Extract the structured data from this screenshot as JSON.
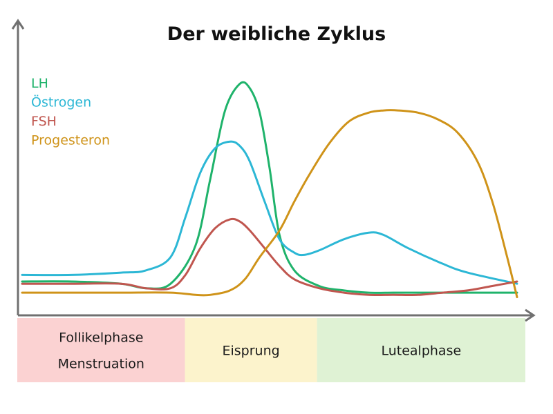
{
  "chart_data": {
    "type": "line",
    "title": "Der weibliche Zyklus",
    "xlabel": "",
    "ylabel": "",
    "xlim": [
      0,
      100
    ],
    "ylim": [
      0,
      100
    ],
    "grid": false,
    "legend_position": "top-left",
    "series": [
      {
        "name": "LH",
        "color": "#1fb36b",
        "x": [
          0,
          10,
          20,
          25,
          30,
          35,
          38,
          41,
          44,
          46,
          48,
          50,
          52,
          55,
          60,
          65,
          70,
          75,
          80,
          90,
          100
        ],
        "y": [
          9,
          9,
          8,
          6,
          8,
          25,
          55,
          86,
          98,
          96,
          85,
          60,
          30,
          14,
          7,
          5,
          4,
          4,
          4,
          4,
          4
        ]
      },
      {
        "name": "Östrogen",
        "color": "#2cb7d5",
        "x": [
          0,
          10,
          20,
          25,
          30,
          33,
          36,
          39,
          42,
          44,
          46,
          49,
          52,
          55,
          57,
          60,
          65,
          70,
          73,
          78,
          85,
          90,
          100
        ],
        "y": [
          12,
          12,
          13,
          14,
          20,
          38,
          58,
          69,
          72,
          70,
          63,
          45,
          28,
          22,
          21,
          23,
          28,
          31,
          30,
          24,
          17,
          13,
          8
        ]
      },
      {
        "name": "FSH",
        "color": "#c0564f",
        "x": [
          0,
          10,
          20,
          25,
          30,
          33,
          36,
          39,
          42,
          44,
          46,
          49,
          52,
          55,
          60,
          65,
          70,
          75,
          80,
          85,
          90,
          95,
          100
        ],
        "y": [
          8,
          8,
          8,
          6,
          6,
          12,
          24,
          33,
          37,
          36,
          32,
          24,
          16,
          10,
          6,
          4,
          3,
          3,
          3,
          4,
          5,
          7,
          9
        ]
      },
      {
        "name": "Progesteron",
        "color": "#cf9319",
        "x": [
          0,
          10,
          20,
          30,
          35,
          38,
          42,
          45,
          48,
          52,
          55,
          58,
          62,
          66,
          70,
          73,
          76,
          80,
          84,
          88,
          92,
          95,
          98,
          100
        ],
        "y": [
          4,
          4,
          4,
          4,
          3,
          3,
          5,
          10,
          20,
          32,
          45,
          57,
          71,
          81,
          85,
          86,
          86,
          85,
          82,
          76,
          63,
          45,
          20,
          2
        ]
      }
    ],
    "phases": [
      {
        "label": "Follikelphase",
        "label2": "Menstruation",
        "x_start": 0,
        "x_end": 33,
        "color": "#fbd2d2"
      },
      {
        "label": "Eisprung",
        "label2": "",
        "x_start": 33,
        "x_end": 59,
        "color": "#fcf3cc"
      },
      {
        "label": "Lutealphase",
        "label2": "",
        "x_start": 59,
        "x_end": 100,
        "color": "#dff2d4"
      }
    ]
  }
}
